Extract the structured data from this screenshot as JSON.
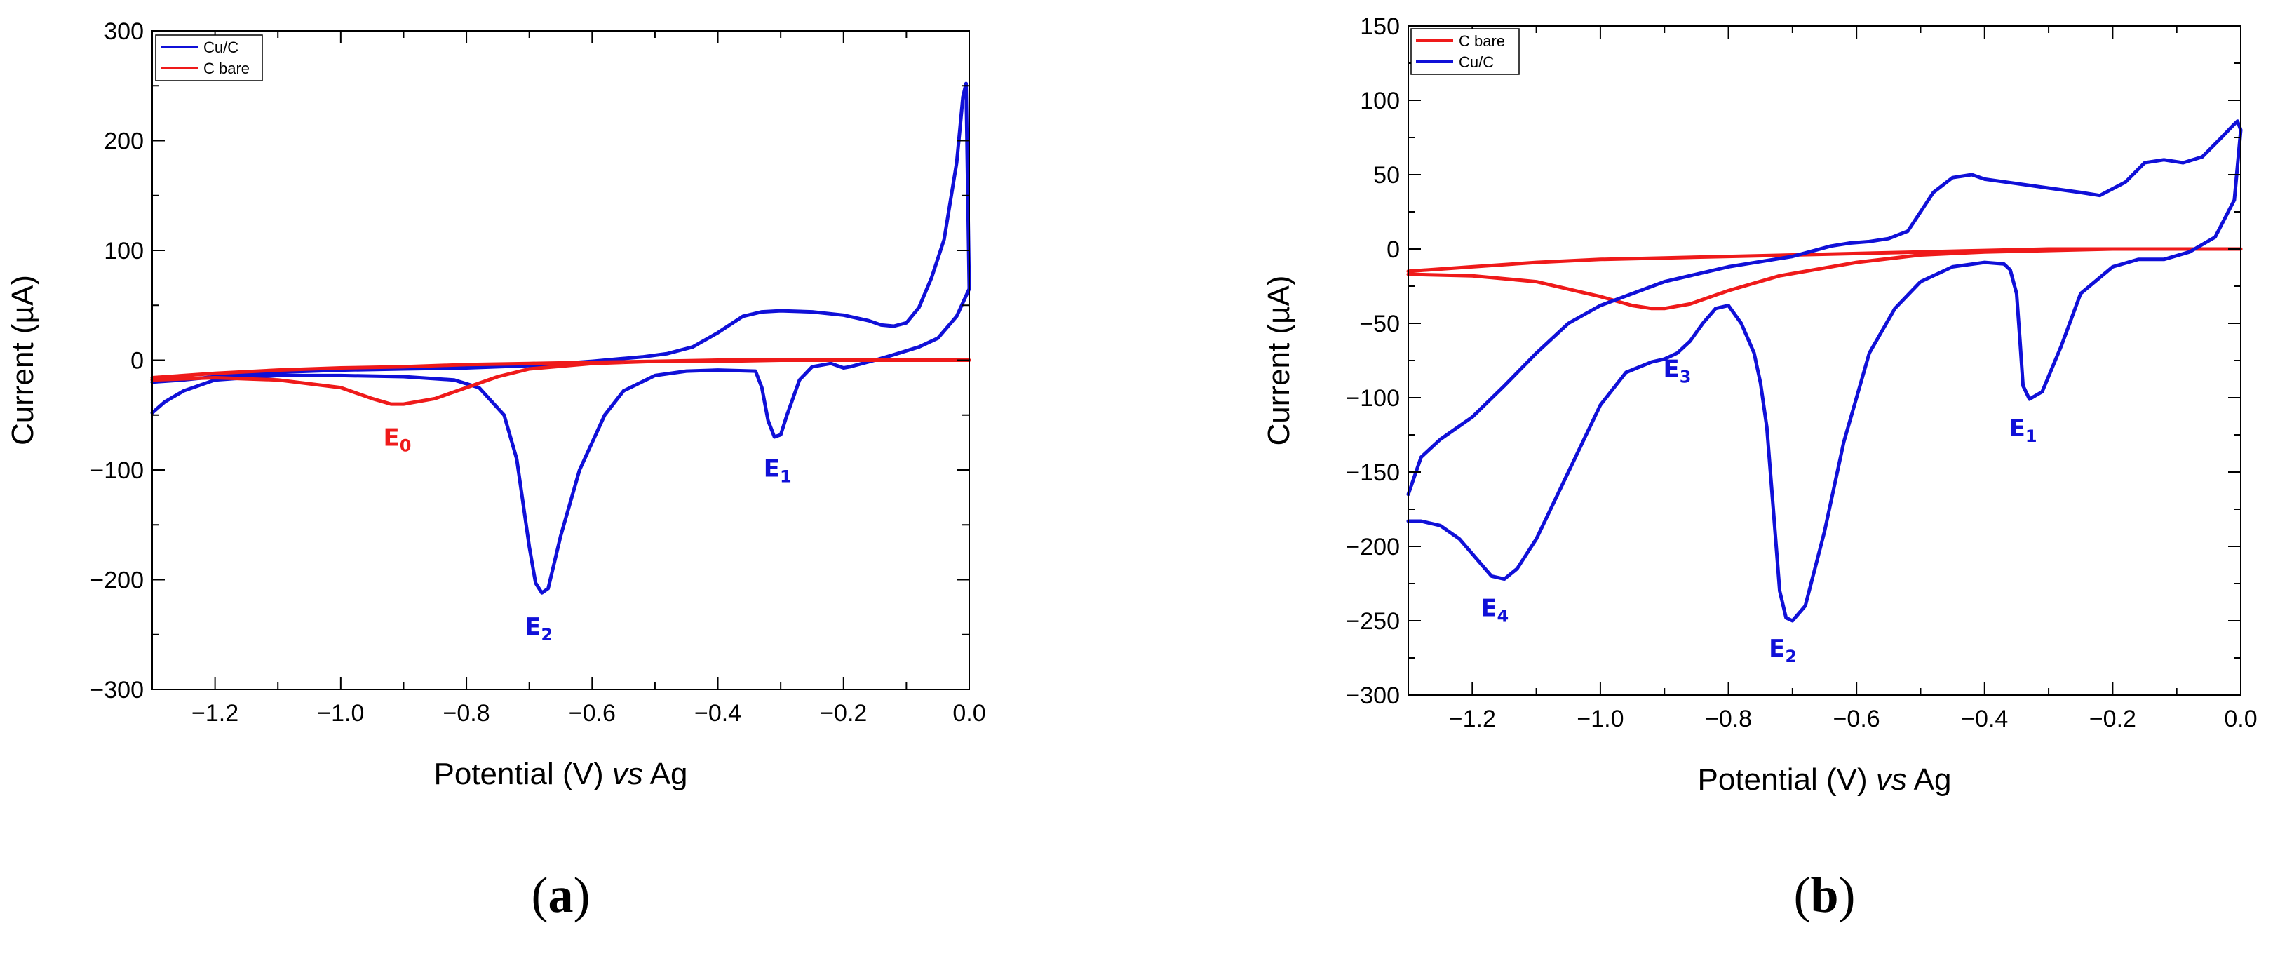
{
  "chart_data": [
    {
      "type": "line",
      "panel": "a",
      "panel_label": "a",
      "xlabel": "Potential (V) vs Ag",
      "xlabel_parts": [
        "Potential (V) ",
        "vs",
        " Ag"
      ],
      "ylabel": "Current (µA)",
      "xlim": [
        -1.3,
        0.0
      ],
      "ylim": [
        -300,
        300
      ],
      "xticks": [
        -1.2,
        -1.0,
        -0.8,
        -0.6,
        -0.4,
        -0.2,
        0.0
      ],
      "xtick_labels": [
        "−1.2",
        "−1.0",
        "−0.8",
        "−0.6",
        "−0.4",
        "−0.2",
        "0.0"
      ],
      "yticks": [
        -300,
        -200,
        -100,
        0,
        100,
        200,
        300
      ],
      "ytick_labels": [
        "−300",
        "−200",
        "−100",
        "0",
        "100",
        "200",
        "300"
      ],
      "grid": false,
      "legend_position": "top-left",
      "legend": [
        "Cu/C",
        "C bare"
      ],
      "series": [
        {
          "name": "Cu/C",
          "color": "#1010d8",
          "x": [
            -1.3,
            -1.28,
            -1.25,
            -1.2,
            -1.1,
            -1.0,
            -0.9,
            -0.82,
            -0.78,
            -0.74,
            -0.72,
            -0.7,
            -0.69,
            -0.68,
            -0.67,
            -0.65,
            -0.62,
            -0.58,
            -0.55,
            -0.5,
            -0.45,
            -0.4,
            -0.34,
            -0.33,
            -0.32,
            -0.31,
            -0.3,
            -0.29,
            -0.27,
            -0.25,
            -0.22,
            -0.2,
            -0.19,
            -0.17,
            -0.15,
            -0.12,
            -0.08,
            -0.05,
            -0.02,
            0.0,
            -0.005,
            -0.01,
            -0.015,
            -0.02,
            -0.04,
            -0.06,
            -0.08,
            -0.1,
            -0.12,
            -0.14,
            -0.16,
            -0.2,
            -0.25,
            -0.3,
            -0.33,
            -0.36,
            -0.4,
            -0.44,
            -0.48,
            -0.52,
            -0.56,
            -0.6,
            -0.65,
            -0.7,
            -0.8,
            -0.9,
            -1.0,
            -1.1,
            -1.2,
            -1.25,
            -1.3
          ],
          "y": [
            -48,
            -38,
            -28,
            -18,
            -14,
            -14,
            -15,
            -18,
            -25,
            -50,
            -90,
            -170,
            -203,
            -212,
            -208,
            -160,
            -100,
            -50,
            -28,
            -14,
            -10,
            -9,
            -10,
            -25,
            -55,
            -70,
            -68,
            -50,
            -18,
            -6,
            -3,
            -7,
            -6,
            -3,
            0,
            5,
            12,
            20,
            40,
            65,
            252,
            240,
            210,
            180,
            110,
            75,
            48,
            34,
            31,
            32,
            36,
            41,
            44,
            45,
            44,
            40,
            25,
            12,
            6,
            3,
            1,
            -1,
            -3,
            -5,
            -7,
            -8,
            -9,
            -11,
            -15,
            -18,
            -20
          ]
        },
        {
          "name": "C bare",
          "color": "#ef1a1a",
          "x": [
            -1.3,
            -1.2,
            -1.1,
            -1.0,
            -0.95,
            -0.92,
            -0.9,
            -0.85,
            -0.8,
            -0.75,
            -0.7,
            -0.6,
            -0.5,
            -0.4,
            -0.3,
            -0.2,
            -0.1,
            0.0,
            -0.1,
            -0.2,
            -0.3,
            -0.4,
            -0.5,
            -0.6,
            -0.7,
            -0.8,
            -0.9,
            -1.0,
            -1.1,
            -1.2,
            -1.3
          ],
          "y": [
            -18,
            -16,
            -18,
            -25,
            -35,
            -40,
            -40,
            -35,
            -25,
            -15,
            -8,
            -3,
            -1,
            0,
            0,
            0,
            0,
            0,
            0,
            0,
            0,
            -1,
            -1,
            -2,
            -3,
            -4,
            -6,
            -7,
            -9,
            -12,
            -16
          ]
        }
      ],
      "annotations": [
        {
          "base": "E",
          "sub": "0",
          "x": -0.91,
          "y": -78,
          "color": "#ef1a1a"
        },
        {
          "base": "E",
          "sub": "1",
          "x": -0.305,
          "y": -106,
          "color": "#1010d8"
        },
        {
          "base": "E",
          "sub": "2",
          "x": -0.685,
          "y": -250,
          "color": "#1010d8"
        }
      ]
    },
    {
      "type": "line",
      "panel": "b",
      "panel_label": "b",
      "xlabel": "Potential (V) vs Ag",
      "xlabel_parts": [
        "Potential (V) ",
        "vs",
        " Ag"
      ],
      "ylabel": "Current (µA)",
      "xlim": [
        -1.3,
        0.0
      ],
      "ylim": [
        -300,
        150
      ],
      "xticks": [
        -1.2,
        -1.0,
        -0.8,
        -0.6,
        -0.4,
        -0.2,
        0.0
      ],
      "xtick_labels": [
        "−1.2",
        "−1.0",
        "−0.8",
        "−0.6",
        "−0.4",
        "−0.2",
        "0.0"
      ],
      "yticks": [
        -300,
        -250,
        -200,
        -150,
        -100,
        -50,
        0,
        50,
        100,
        150
      ],
      "ytick_labels": [
        "−300",
        "−250",
        "−200",
        "−150",
        "−100",
        "−50",
        "0",
        "50",
        "100",
        "150"
      ],
      "grid": false,
      "legend_position": "top-left",
      "legend": [
        "C bare",
        "Cu/C"
      ],
      "series": [
        {
          "name": "C bare",
          "color": "#ef1a1a",
          "x": [
            -1.3,
            -1.2,
            -1.1,
            -1.0,
            -0.95,
            -0.92,
            -0.9,
            -0.86,
            -0.8,
            -0.72,
            -0.6,
            -0.5,
            -0.4,
            -0.3,
            -0.2,
            -0.1,
            0.0,
            -0.1,
            -0.2,
            -0.3,
            -0.4,
            -0.5,
            -0.6,
            -0.7,
            -0.8,
            -0.9,
            -1.0,
            -1.1,
            -1.2,
            -1.3
          ],
          "y": [
            -17,
            -18,
            -22,
            -32,
            -38,
            -40,
            -40,
            -37,
            -28,
            -18,
            -9,
            -4,
            -2,
            -1,
            0,
            0,
            0,
            0,
            0,
            0,
            -1,
            -2,
            -3,
            -4,
            -5,
            -6,
            -7,
            -9,
            -12,
            -15
          ]
        },
        {
          "name": "Cu/C",
          "color": "#1010d8",
          "x": [
            -1.3,
            -1.28,
            -1.25,
            -1.22,
            -1.19,
            -1.17,
            -1.15,
            -1.13,
            -1.1,
            -1.05,
            -1.0,
            -0.96,
            -0.92,
            -0.9,
            -0.88,
            -0.86,
            -0.84,
            -0.82,
            -0.8,
            -0.78,
            -0.76,
            -0.75,
            -0.74,
            -0.73,
            -0.72,
            -0.71,
            -0.7,
            -0.68,
            -0.65,
            -0.62,
            -0.58,
            -0.54,
            -0.5,
            -0.45,
            -0.4,
            -0.37,
            -0.36,
            -0.35,
            -0.345,
            -0.34,
            -0.33,
            -0.31,
            -0.28,
            -0.25,
            -0.2,
            -0.16,
            -0.12,
            -0.08,
            -0.04,
            -0.01,
            0.0,
            -0.005,
            -0.01,
            -0.03,
            -0.06,
            -0.09,
            -0.12,
            -0.15,
            -0.18,
            -0.22,
            -0.25,
            -0.3,
            -0.35,
            -0.4,
            -0.42,
            -0.45,
            -0.48,
            -0.5,
            -0.52,
            -0.55,
            -0.58,
            -0.61,
            -0.64,
            -0.7,
            -0.8,
            -0.9,
            -1.0,
            -1.05,
            -1.1,
            -1.15,
            -1.2,
            -1.25,
            -1.28,
            -1.3
          ],
          "y": [
            -183,
            -183,
            -186,
            -195,
            -210,
            -220,
            -222,
            -215,
            -195,
            -150,
            -105,
            -83,
            -76,
            -74,
            -70,
            -62,
            -50,
            -40,
            -38,
            -50,
            -70,
            -90,
            -120,
            -175,
            -230,
            -248,
            -250,
            -240,
            -190,
            -130,
            -70,
            -40,
            -22,
            -12,
            -9,
            -10,
            -14,
            -30,
            -60,
            -92,
            -101,
            -96,
            -65,
            -30,
            -12,
            -7,
            -7,
            -2,
            8,
            33,
            80,
            86,
            84,
            75,
            62,
            58,
            60,
            58,
            45,
            36,
            38,
            41,
            44,
            47,
            50,
            48,
            38,
            25,
            12,
            7,
            5,
            4,
            2,
            -5,
            -12,
            -22,
            -38,
            -50,
            -70,
            -92,
            -113,
            -128,
            -140,
            -165
          ]
        }
      ],
      "annotations": [
        {
          "base": "E",
          "sub": "1",
          "x": -0.34,
          "y": -126,
          "color": "#1010d8"
        },
        {
          "base": "E",
          "sub": "2",
          "x": -0.715,
          "y": -274,
          "color": "#1010d8"
        },
        {
          "base": "E",
          "sub": "3",
          "x": -0.88,
          "y": -86,
          "color": "#1010d8"
        },
        {
          "base": "E",
          "sub": "4",
          "x": -1.165,
          "y": -247,
          "color": "#1010d8"
        }
      ]
    }
  ]
}
